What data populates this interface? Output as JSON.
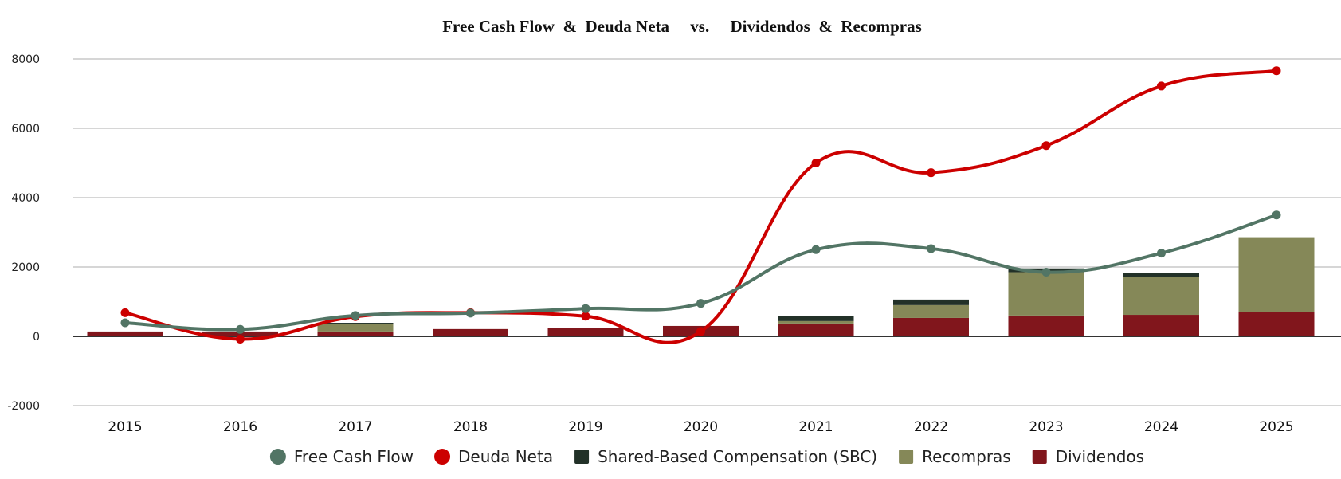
{
  "chart_data": {
    "type": "bar",
    "title": "Free Cash Flow  &  Deuda Neta     vs.     Dividendos  &  Recompras",
    "xlabel": "",
    "ylabel": "",
    "ylim": [
      -2000,
      8000
    ],
    "yticks": [
      -2000,
      0,
      2000,
      4000,
      6000,
      8000
    ],
    "grid": true,
    "legend_position": "bottom",
    "categories": [
      "2015",
      "2016",
      "2017",
      "2018",
      "2019",
      "2020",
      "2021",
      "2022",
      "2023",
      "2024",
      "2025"
    ],
    "series": [
      {
        "name": "Free Cash Flow",
        "kind": "line-smooth",
        "color": "#527565",
        "marker": "circle",
        "values": [
          390,
          200,
          600,
          670,
          800,
          950,
          2500,
          2530,
          1850,
          2400,
          3500
        ]
      },
      {
        "name": "Deuda Neta",
        "kind": "line-smooth",
        "color": "#cc0000",
        "marker": "circle",
        "values": [
          680,
          -80,
          570,
          680,
          580,
          140,
          5000,
          4720,
          5500,
          7220,
          7660
        ]
      },
      {
        "name": "Shared-Based Compensation (SBC)",
        "kind": "bar-stacked",
        "color": "#223128",
        "marker": "square",
        "values": [
          0,
          0,
          20,
          0,
          0,
          0,
          140,
          160,
          110,
          120,
          0
        ]
      },
      {
        "name": "Recompras",
        "kind": "bar-stacked",
        "color": "#858858",
        "marker": "square",
        "values": [
          0,
          0,
          230,
          0,
          0,
          0,
          70,
          370,
          1250,
          1090,
          2170
        ]
      },
      {
        "name": "Dividendos",
        "kind": "bar-stacked",
        "color": "#81161c",
        "marker": "square",
        "values": [
          140,
          140,
          140,
          210,
          250,
          300,
          370,
          530,
          600,
          620,
          690
        ]
      }
    ],
    "legend_order": [
      "Free Cash Flow",
      "Deuda Neta",
      "Shared-Based Compensation (SBC)",
      "Recompras",
      "Dividendos"
    ]
  }
}
